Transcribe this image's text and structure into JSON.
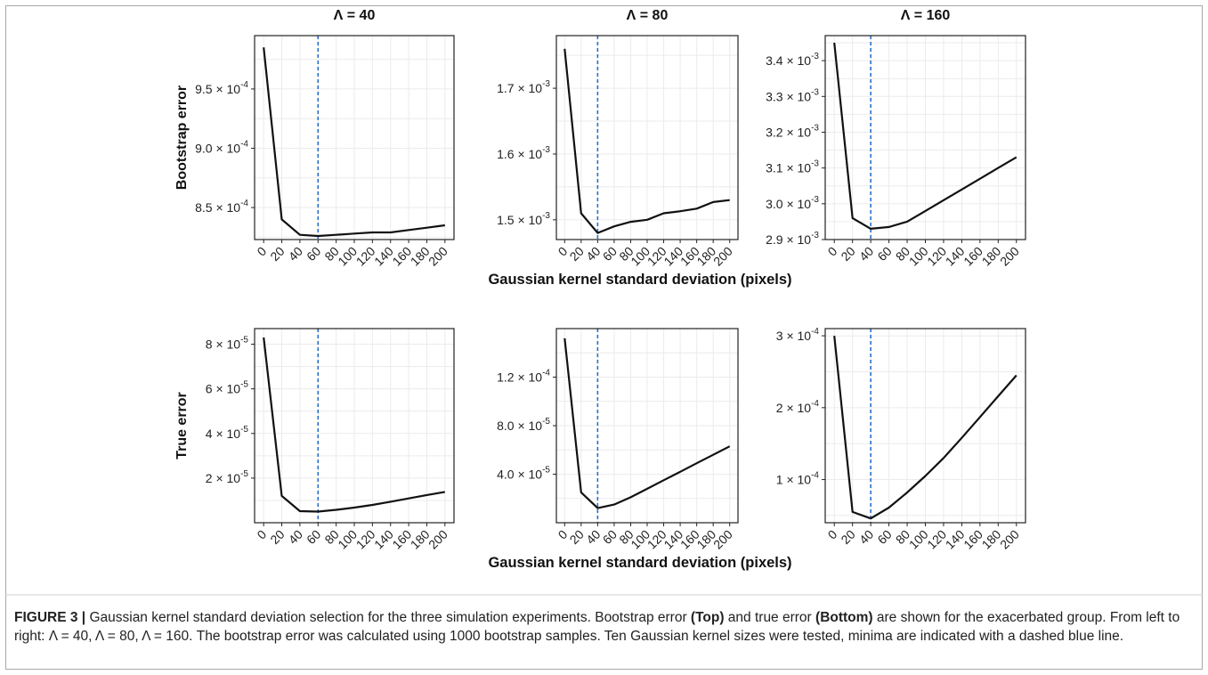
{
  "figure": {
    "xlabel": "Gaussian kernel standard deviation (pixels)",
    "row_labels": [
      "Bootstrap error",
      "True error"
    ],
    "col_titles": [
      "Λ = 40",
      "Λ = 80",
      "Λ = 160"
    ]
  },
  "caption": {
    "label": "FIGURE 3 |",
    "text1": " Gaussian kernel standard deviation selection for the three simulation experiments. Bootstrap error ",
    "bold_top": "(Top)",
    "text2": " and true error ",
    "bold_bottom": "(Bottom)",
    "text3": " are shown for the exacerbated group. From left to right: Λ = 40, Λ = 80, Λ = 160. The bootstrap error was calculated using 1000 bootstrap samples. Ten Gaussian kernel sizes were tested, minima are indicated with a dashed blue line."
  },
  "colors": {
    "line": "#111111",
    "min_line": "#2b6fcb",
    "grid": "#ebebeb",
    "frame": "#222222"
  },
  "chart_data": [
    {
      "type": "line",
      "title": "Λ = 40",
      "ylabel": "Bootstrap error",
      "xlabel": "",
      "x": [
        0,
        20,
        40,
        60,
        80,
        100,
        120,
        140,
        160,
        180,
        200
      ],
      "series": [
        {
          "values": [
            0.000985,
            0.00084,
            0.000827,
            0.000826,
            0.000827,
            0.000828,
            0.000829,
            0.000829,
            0.000831,
            0.000833,
            0.000835
          ]
        }
      ],
      "xlim": [
        -10,
        210
      ],
      "ylim": [
        0.000823,
        0.000995
      ],
      "yticks": [
        0.00085,
        0.0009,
        0.00095
      ],
      "ytick_labels": [
        [
          "8.5",
          "-4"
        ],
        [
          "9.0",
          "-4"
        ],
        [
          "9.5",
          "-4"
        ]
      ],
      "minimum_x": 60,
      "grid": true
    },
    {
      "type": "line",
      "title": "Λ = 80",
      "ylabel": "",
      "xlabel": "",
      "x": [
        0,
        20,
        40,
        60,
        80,
        100,
        120,
        140,
        160,
        180,
        200
      ],
      "series": [
        {
          "values": [
            0.00176,
            0.00151,
            0.00148,
            0.00149,
            0.001497,
            0.0015,
            0.00151,
            0.001513,
            0.001517,
            0.001527,
            0.00153
          ]
        }
      ],
      "xlim": [
        -10,
        210
      ],
      "ylim": [
        0.00147,
        0.00178
      ],
      "yticks": [
        0.0015,
        0.0016,
        0.0017
      ],
      "ytick_labels": [
        [
          "1.5",
          "-3"
        ],
        [
          "1.6",
          "-3"
        ],
        [
          "1.7",
          "-3"
        ]
      ],
      "minimum_x": 40,
      "grid": true
    },
    {
      "type": "line",
      "title": "Λ = 160",
      "ylabel": "",
      "xlabel": "Gaussian kernel standard deviation (pixels)",
      "x": [
        0,
        20,
        40,
        60,
        80,
        100,
        120,
        140,
        160,
        180,
        200
      ],
      "series": [
        {
          "values": [
            0.00345,
            0.00296,
            0.00293,
            0.002935,
            0.00295,
            0.00298,
            0.00301,
            0.00304,
            0.00307,
            0.0031,
            0.00313
          ]
        }
      ],
      "xlim": [
        -10,
        210
      ],
      "ylim": [
        0.0029,
        0.00347
      ],
      "yticks": [
        0.0029,
        0.003,
        0.0031,
        0.0032,
        0.0033,
        0.0034
      ],
      "ytick_labels": [
        [
          "2.9",
          "-3"
        ],
        [
          "3.0",
          "-3"
        ],
        [
          "3.1",
          "-3"
        ],
        [
          "3.2",
          "-3"
        ],
        [
          "3.3",
          "-3"
        ],
        [
          "3.4",
          "-3"
        ]
      ],
      "minimum_x": 40,
      "grid": true
    },
    {
      "type": "line",
      "title": "",
      "ylabel": "True error",
      "xlabel": "",
      "x": [
        0,
        20,
        40,
        60,
        80,
        100,
        120,
        140,
        160,
        180,
        200
      ],
      "series": [
        {
          "values": [
            8.3e-05,
            1.2e-05,
            5.2e-06,
            5e-06,
            5.8e-06,
            6.8e-06,
            8e-06,
            9.4e-06,
            1.09e-05,
            1.24e-05,
            1.38e-05
          ]
        }
      ],
      "xlim": [
        -10,
        210
      ],
      "ylim": [
        0.0,
        8.7e-05
      ],
      "yticks": [
        2e-05,
        4e-05,
        6e-05,
        8e-05
      ],
      "ytick_labels": [
        [
          "2",
          "-5"
        ],
        [
          "4",
          "-5"
        ],
        [
          "6",
          "-5"
        ],
        [
          "8",
          "-5"
        ]
      ],
      "minimum_x": 60,
      "grid": true
    },
    {
      "type": "line",
      "title": "",
      "ylabel": "",
      "xlabel": "",
      "x": [
        0,
        20,
        40,
        60,
        80,
        100,
        120,
        140,
        160,
        180,
        200
      ],
      "series": [
        {
          "values": [
            0.000152,
            2.5e-05,
            1.2e-05,
            1.5e-05,
            2.1e-05,
            2.8e-05,
            3.5e-05,
            4.2e-05,
            4.9e-05,
            5.6e-05,
            6.3e-05
          ]
        }
      ],
      "xlim": [
        -10,
        210
      ],
      "ylim": [
        0.0,
        0.00016
      ],
      "yticks": [
        4e-05,
        8e-05,
        0.00012
      ],
      "ytick_labels": [
        [
          "4.0",
          "-5"
        ],
        [
          "8.0",
          "-5"
        ],
        [
          "1.2",
          "-4"
        ]
      ],
      "minimum_x": 40,
      "grid": true
    },
    {
      "type": "line",
      "title": "",
      "ylabel": "",
      "xlabel": "Gaussian kernel standard deviation (pixels)",
      "x": [
        0,
        20,
        40,
        60,
        80,
        100,
        120,
        140,
        160,
        180,
        200
      ],
      "series": [
        {
          "values": [
            0.0003,
            5.5e-05,
            4.6e-05,
            6.1e-05,
            8.2e-05,
            0.000105,
            0.00013,
            0.000158,
            0.000187,
            0.000216,
            0.000245
          ]
        }
      ],
      "xlim": [
        -10,
        210
      ],
      "ylim": [
        4e-05,
        0.00031
      ],
      "yticks": [
        0.0001,
        0.0002,
        0.0003
      ],
      "ytick_labels": [
        [
          "1",
          "-4"
        ],
        [
          "2",
          "-4"
        ],
        [
          "3",
          "-4"
        ]
      ],
      "minimum_x": 40,
      "grid": true
    }
  ]
}
